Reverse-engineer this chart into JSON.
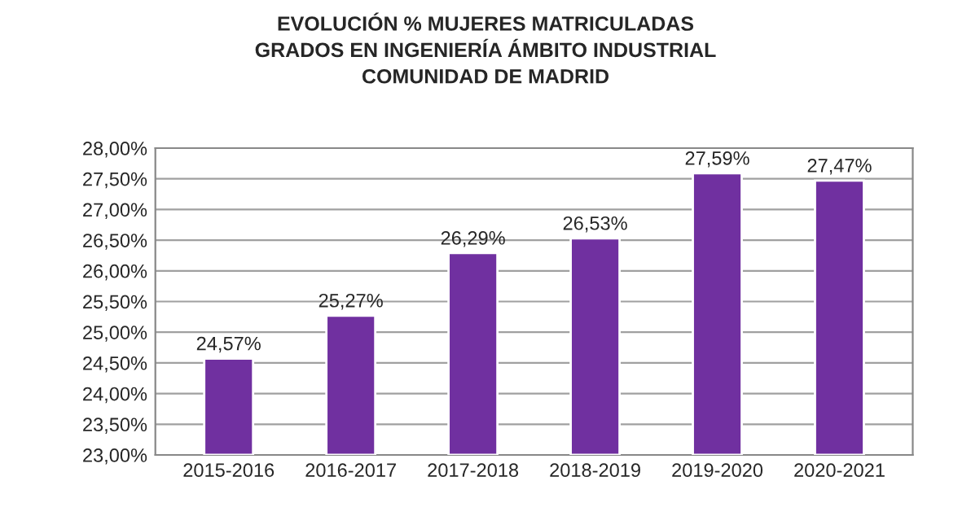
{
  "chart_data": {
    "type": "bar",
    "title": "EVOLUCIÓN % MUJERES MATRICULADAS\nGRADOS EN INGENIERÍA ÁMBITO INDUSTRIAL\nCOMUNIDAD DE MADRID",
    "categories": [
      "2015-2016",
      "2016-2017",
      "2017-2018",
      "2018-2019",
      "2019-2020",
      "2020-2021"
    ],
    "values": [
      24.57,
      25.27,
      26.29,
      26.53,
      27.59,
      27.47
    ],
    "value_labels": [
      "24,57%",
      "25,27%",
      "26,29%",
      "26,53%",
      "27,59%",
      "27,47%"
    ],
    "color": "#7030a0",
    "ylim": [
      23,
      28
    ],
    "yticks": [
      {
        "value": 23,
        "label": "23,00%"
      },
      {
        "value": 23.5,
        "label": "23,50%"
      },
      {
        "value": 24,
        "label": "24,00%"
      },
      {
        "value": 24.5,
        "label": "24,50%"
      },
      {
        "value": 25,
        "label": "25,00%"
      },
      {
        "value": 25.5,
        "label": "25,50%"
      },
      {
        "value": 26,
        "label": "26,00%"
      },
      {
        "value": 26.5,
        "label": "26,50%"
      },
      {
        "value": 27,
        "label": "27,00%"
      },
      {
        "value": 27.5,
        "label": "27,50%"
      },
      {
        "value": 28,
        "label": "28,00%"
      }
    ],
    "grid": "y",
    "legend": false
  }
}
